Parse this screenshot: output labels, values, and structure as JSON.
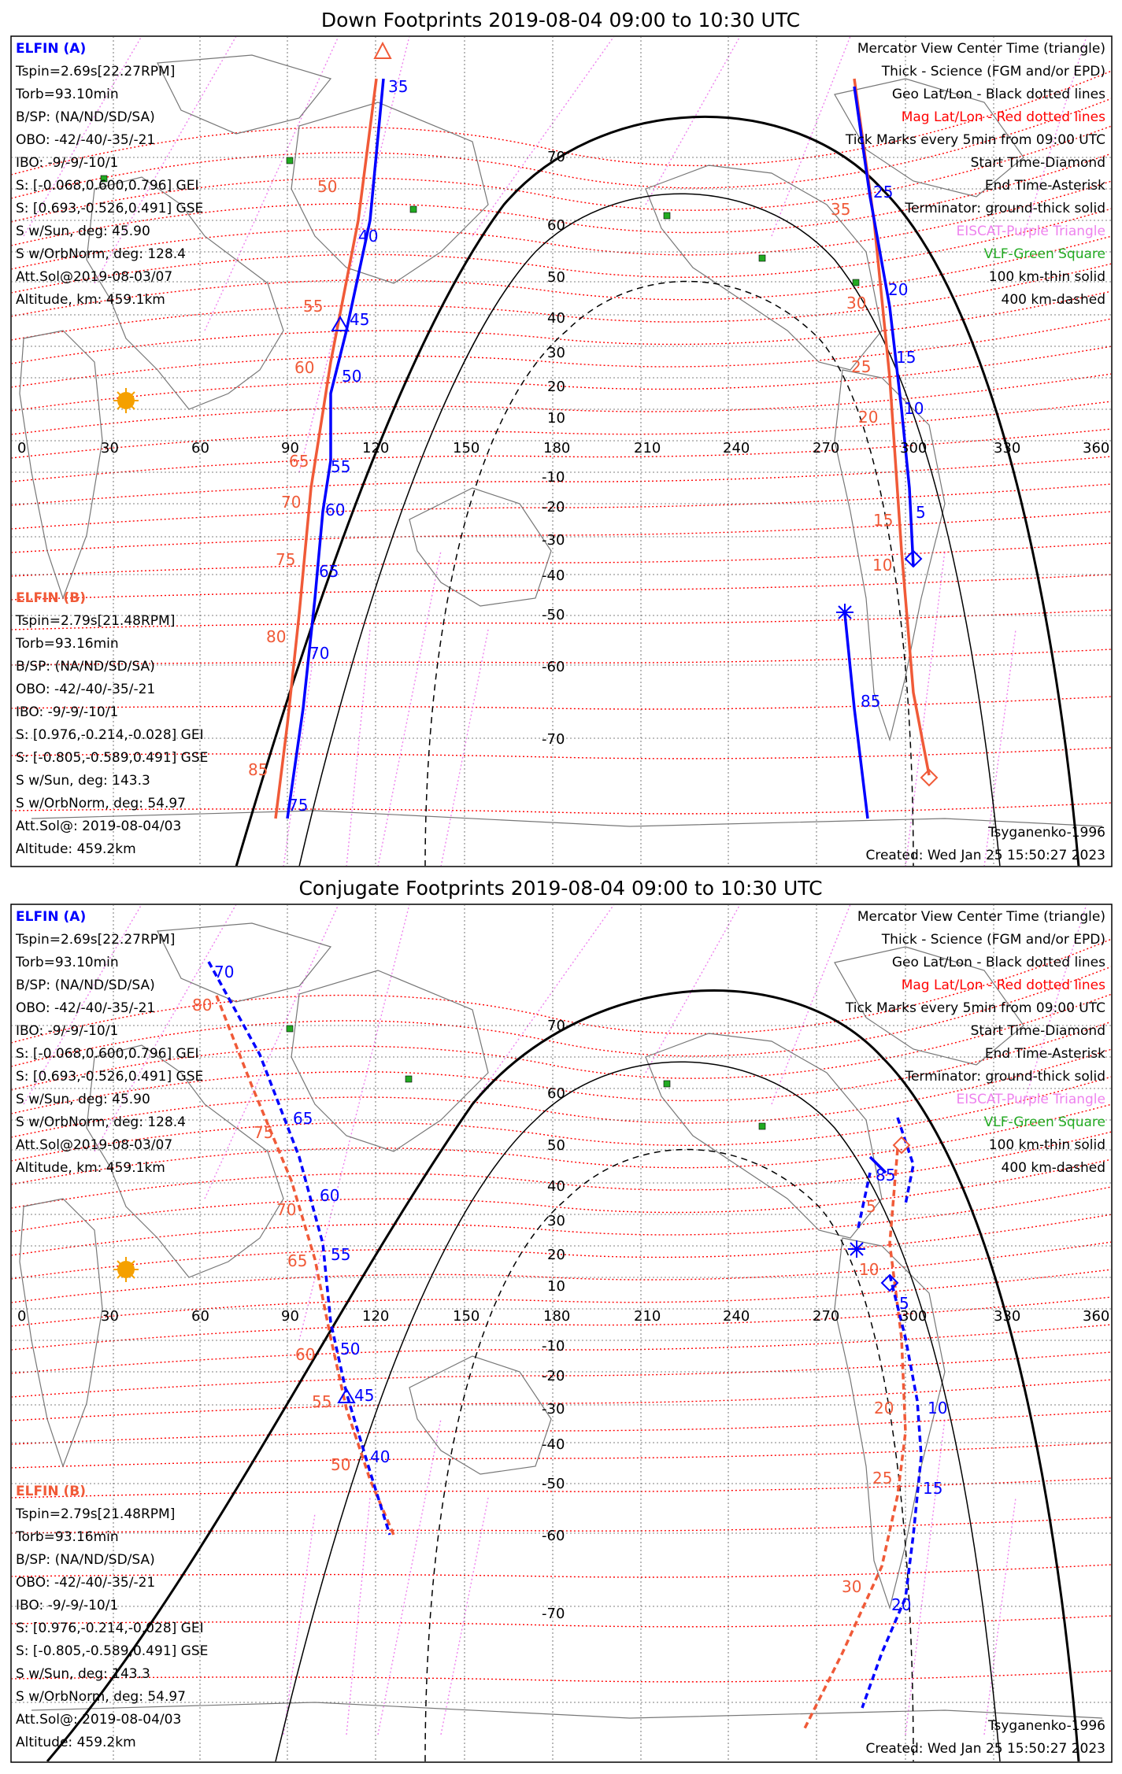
{
  "panels": [
    {
      "title": "Down Footprints 2019-08-04 09:00 to 10:30 UTC",
      "a_labels": [
        "35",
        "40",
        "45",
        "50",
        "55",
        "60",
        "65",
        "70",
        "75"
      ],
      "b_labels": [
        "50",
        "55",
        "60",
        "65",
        "70",
        "75",
        "80",
        "85"
      ],
      "c_labels": [
        "25",
        "20",
        "15",
        "10",
        "5",
        "85"
      ],
      "d_labels": [
        "35",
        "30",
        "25",
        "20",
        "15",
        "10"
      ]
    },
    {
      "title": "Conjugate Footprints 2019-08-04 09:00 to 10:30 UTC",
      "a_labels": [
        "70",
        "65",
        "60",
        "55",
        "50",
        "45",
        "40"
      ],
      "b_labels": [
        "80",
        "75",
        "70",
        "65",
        "60",
        "55",
        "50"
      ],
      "c_labels": [
        "85",
        "5",
        "10",
        "15",
        "20"
      ],
      "d_labels": [
        "5",
        "10",
        "20",
        "25",
        "30"
      ]
    }
  ],
  "info_a": {
    "name": "ELFIN (A)",
    "lines": [
      "Tspin=2.69s[22.27RPM]",
      "Torb=93.10min",
      "B/SP: (NA/ND/SD/SA)",
      "OBO: -42/-40/-35/-21",
      "IBO: -9/-9/-10/1",
      "S: [-0.068,0.600,0.796] GEI",
      "S: [0.693,-0.526,0.491] GSE",
      "S w/Sun, deg: 45.90",
      "S w/OrbNorm, deg: 128.4",
      "Att.Sol@2019-08-03/07",
      "Altitude, km: 459.1km"
    ]
  },
  "info_b": {
    "name": "ELFIN (B)",
    "lines": [
      "Tspin=2.79s[21.48RPM]",
      "Torb=93.16min",
      "B/SP: (NA/ND/SD/SA)",
      "OBO: -42/-40/-35/-21",
      "IBO: -9/-9/-10/1",
      "S: [0.976,-0.214,-0.028] GEI",
      "S: [-0.805,-0.589,0.491] GSE",
      "S w/Sun, deg: 143.3",
      "S w/OrbNorm, deg: 54.97",
      "Att.Sol@: 2019-08-04/03",
      "Altitude: 459.2km"
    ]
  },
  "legend": {
    "lines": [
      "Mercator View Center Time (triangle)",
      "Thick - Science (FGM and/or EPD)",
      "Geo Lat/Lon - Black dotted lines",
      "Mag Lat/Lon - Red dotted lines",
      "Tick Marks every 5min from 09:00 UTC",
      "Start Time-Diamond",
      "End Time-Asterisk",
      "Terminator: ground-thick solid",
      "EISCAT-Purple Triangle",
      "VLF-Green Square",
      "100 km-thin solid",
      "400 km-dashed"
    ],
    "colors": [
      "#000000",
      "#000000",
      "#000000",
      "#ff0000",
      "#000000",
      "#000000",
      "#000000",
      "#000000",
      "#ee82ee",
      "#22aa22",
      "#000000",
      "#000000"
    ]
  },
  "footer": {
    "model": "Tsyganenko-1996",
    "created": "Created: Wed Jan 25 15:50:27 2023"
  },
  "axis": {
    "lon_labels": [
      "0",
      "30",
      "60",
      "90",
      "120",
      "150",
      "180",
      "210",
      "240",
      "270",
      "300",
      "330",
      "360"
    ],
    "lat_labels": [
      "70",
      "60",
      "50",
      "40",
      "30",
      "20",
      "10",
      "-10",
      "-20",
      "-30",
      "-40",
      "-50",
      "-60",
      "-70"
    ]
  },
  "colors": {
    "elfin_a": "#0000ff",
    "elfin_b": "#f05a38",
    "mag": "#ff0000",
    "eiscat": "#ee82ee",
    "vlf": "#22aa22",
    "sun": "#f5a000"
  }
}
